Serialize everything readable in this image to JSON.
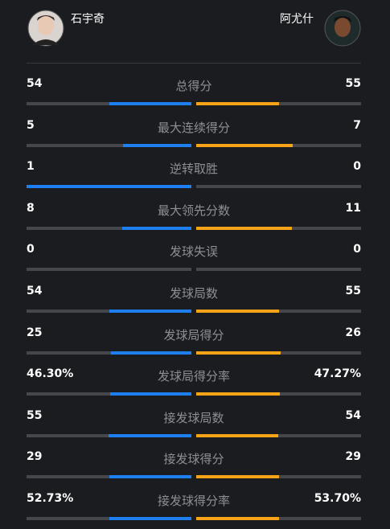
{
  "players": {
    "left": "石宇奇",
    "right": "阿尤什"
  },
  "rows": [
    {
      "label": "总得分",
      "left": 54,
      "right": 55
    },
    {
      "label": "最大连续得分",
      "left": 5,
      "right": 7
    },
    {
      "label": "逆转取胜",
      "left": 1,
      "right": 0
    },
    {
      "label": "最大领先分数",
      "left": 8,
      "right": 11
    },
    {
      "label": "发球失误",
      "left": 0,
      "right": 0
    },
    {
      "label": "发球局数",
      "left": 54,
      "right": 55
    },
    {
      "label": "发球局得分",
      "left": 25,
      "right": 26
    },
    {
      "label": "发球局得分率",
      "left": 46.3,
      "left_label": "46.30%",
      "right": 47.27,
      "right_label": "47.27%"
    },
    {
      "label": "接发球局数",
      "left": 55,
      "right": 54
    },
    {
      "label": "接发球得分",
      "left": 29,
      "right": 29
    },
    {
      "label": "接发球得分率",
      "left": 52.73,
      "left_label": "52.73%",
      "right": 53.7,
      "right_label": "53.70%"
    }
  ]
}
